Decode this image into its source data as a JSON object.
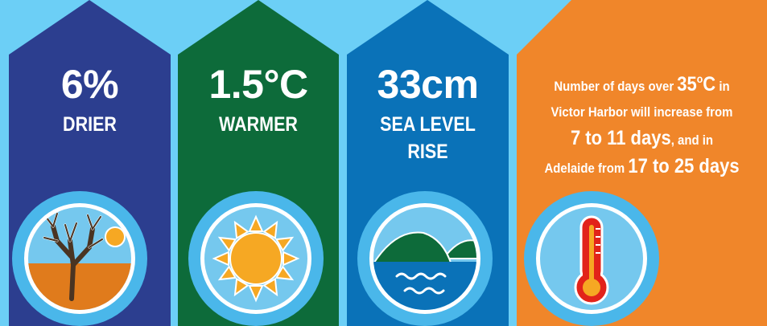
{
  "panels": [
    {
      "id": "drier",
      "color": "#2c3e8f",
      "value": "6%",
      "label": "DRIER",
      "icon": "dry-tree-icon"
    },
    {
      "id": "warmer",
      "color": "#0d6b3a",
      "value": "1.5°C",
      "label": "WARMER",
      "icon": "sun-icon"
    },
    {
      "id": "sea",
      "color": "#0a72b8",
      "value": "33cm",
      "label_line1": "SEA LEVEL",
      "label_line2": "RISE",
      "icon": "sea-island-icon"
    },
    {
      "id": "hot-days",
      "color": "#f0862a",
      "icon": "thermometer-icon",
      "line1_a": "Number of days over ",
      "line1_b": "35",
      "line1_c": "o",
      "line1_d": "C",
      "line1_e": " in",
      "line2": "Victor Harbor will increase from",
      "line3_a": "7 to 11 days",
      "line3_b": ", and in",
      "line4_a": "Adelaide from ",
      "line4_b": "17 to 25 days"
    }
  ],
  "colors": {
    "background": "#6ccff6",
    "circle_ring": "#4ab7ea",
    "text": "#ffffff"
  }
}
